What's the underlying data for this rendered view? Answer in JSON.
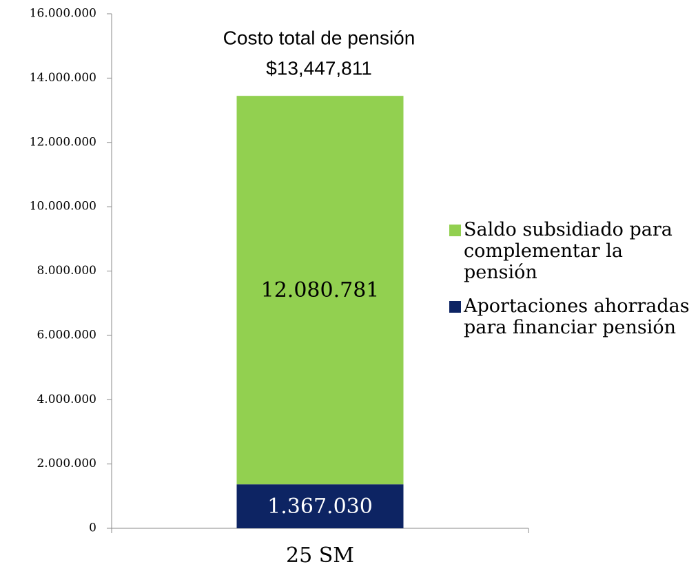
{
  "chart_data": {
    "type": "stacked_bar",
    "annotations": [
      "Costo total de pensión",
      "$13,447,811"
    ],
    "categories": [
      "25 SM"
    ],
    "series": [
      {
        "name": "Aportaciones ahorradas para financiar pensión",
        "color": "#0d2463",
        "values": [
          1367030
        ],
        "value_labels": [
          "1.367.030"
        ]
      },
      {
        "name": "Saldo subsidiado para complementar la pensión",
        "color": "#92d050",
        "values": [
          12080781
        ],
        "value_labels": [
          "12.080.781"
        ]
      }
    ],
    "ylim": [
      0,
      16000000
    ],
    "yticks": [
      0,
      {
        "value": 2000000,
        "label": "2.000.000"
      },
      {
        "value": 4000000,
        "label": "4.000.000"
      },
      {
        "value": 6000000,
        "label": "6.000.000"
      },
      {
        "value": 8000000,
        "label": "8.000.000"
      },
      {
        "value": 10000000,
        "label": "10.000.000"
      },
      {
        "value": 12000000,
        "label": "12.000.000"
      },
      {
        "value": 14000000,
        "label": "14.000.000"
      },
      {
        "value": 16000000,
        "label": "16.000.000"
      }
    ],
    "legend": "right"
  }
}
